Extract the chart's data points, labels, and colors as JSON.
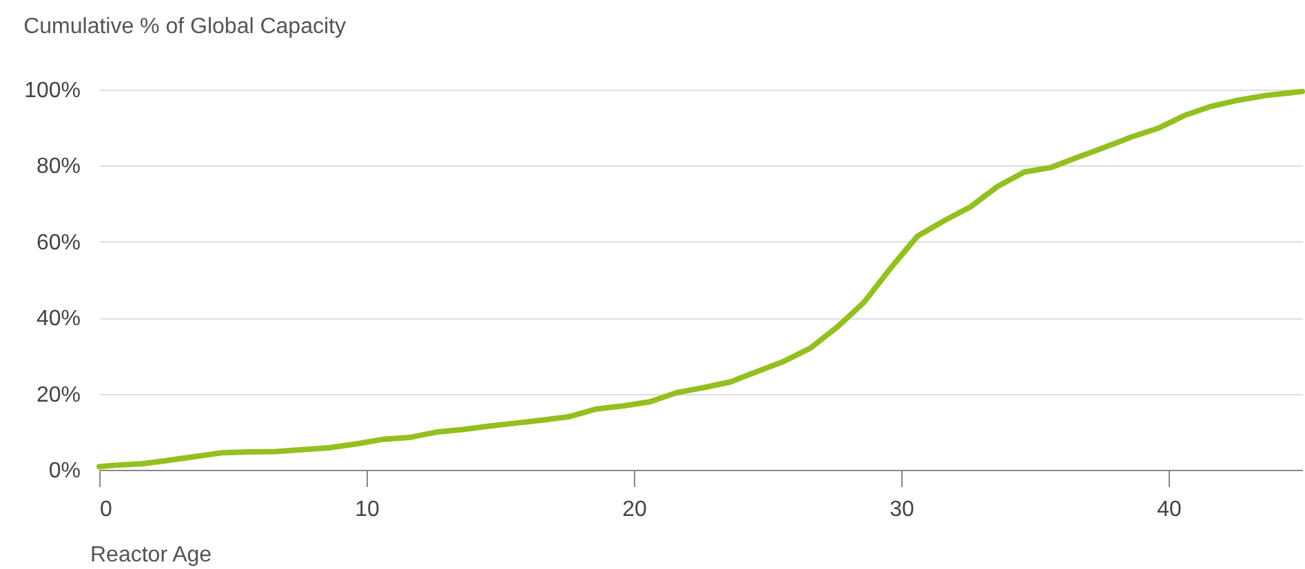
{
  "chart_data": {
    "type": "line",
    "title": "Cumulative % of Global Capacity",
    "xlabel": "Reactor Age",
    "x": [
      0,
      0.6,
      1.6,
      2.6,
      3.6,
      4.6,
      5.6,
      6.6,
      7.6,
      8.6,
      9.6,
      10.6,
      11.6,
      12.6,
      13.6,
      14.6,
      15.6,
      16.6,
      17.6,
      18.6,
      19.6,
      20.6,
      21.6,
      22.6,
      23.6,
      24.6,
      25.6,
      26.6,
      27.6,
      28.6,
      29.6,
      30.6,
      31.6,
      32.6,
      33.6,
      34.6,
      35.6,
      36.6,
      37.6,
      38.6,
      39.6,
      40.6,
      41.6,
      42.6,
      43.6,
      44.6,
      45
    ],
    "series": [
      {
        "color": "#93c01f",
        "values": [
          0.8,
          1.2,
          1.6,
          2.5,
          3.5,
          4.5,
          4.7,
          4.8,
          5.3,
          5.8,
          6.8,
          8.0,
          8.5,
          9.9,
          10.6,
          11.5,
          12.3,
          13.1,
          14.0,
          16.0,
          16.8,
          17.9,
          20.3,
          21.6,
          23.1,
          25.8,
          28.5,
          32.0,
          37.5,
          44.0,
          53.0,
          61.4,
          65.5,
          69.2,
          74.5,
          78.3,
          79.5,
          82.2,
          84.8,
          87.5,
          89.8,
          93.2,
          95.6,
          97.2,
          98.4,
          99.2,
          99.5
        ]
      }
    ],
    "xlim": [
      0,
      45
    ],
    "xticks": [
      0,
      10,
      20,
      30,
      40
    ],
    "ylim": [
      0,
      100
    ],
    "yticks": [
      {
        "value": 0,
        "label": "0%"
      },
      {
        "value": 20,
        "label": "20%"
      },
      {
        "value": 40,
        "label": "40%"
      },
      {
        "value": 60,
        "label": "60%"
      },
      {
        "value": 80,
        "label": "80%"
      },
      {
        "value": 100,
        "label": "100%"
      }
    ],
    "grid": "y",
    "marker": "none",
    "line_style": "solid"
  }
}
